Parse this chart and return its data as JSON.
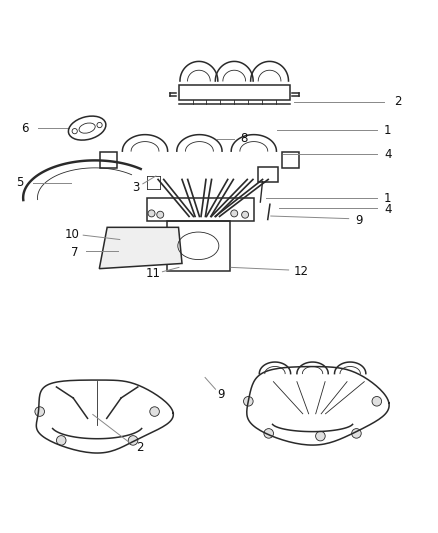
{
  "background_color": "#ffffff",
  "line_color": "#2a2a2a",
  "label_color": "#111111",
  "leader_color": "#888888",
  "figsize": [
    4.38,
    5.33
  ],
  "dpi": 100,
  "lw_main": 1.1,
  "lw_thin": 0.6,
  "font_size": 8.5
}
